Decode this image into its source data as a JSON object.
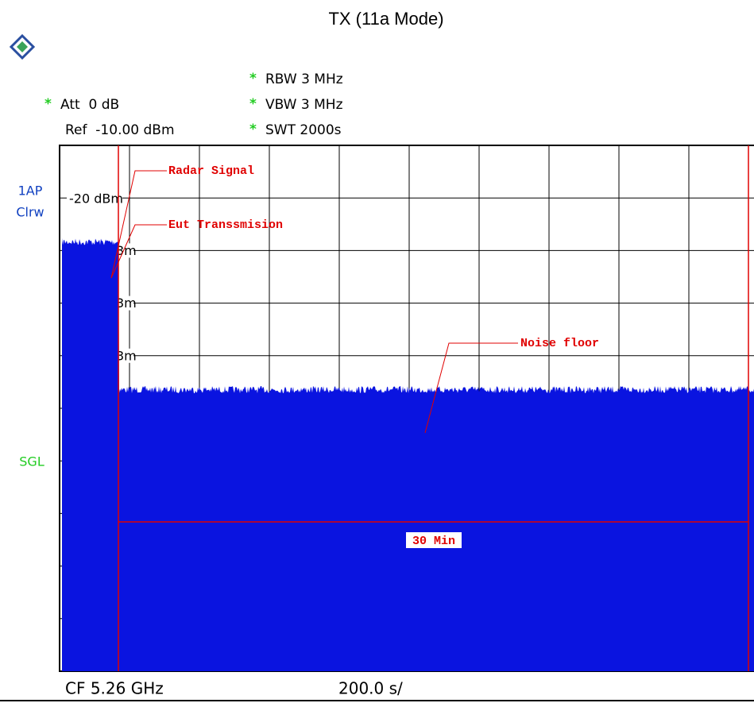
{
  "title": "TX (11a Mode)",
  "settings": {
    "marker": "*",
    "rbw": "RBW 3 MHz",
    "att": "Att  0 dB",
    "vbw": "VBW 3 MHz",
    "ref": "Ref  -10.00 dBm",
    "swt": "SWT 2000s"
  },
  "side": {
    "trace": "1AP",
    "mode": "Clrw",
    "sweep": "SGL"
  },
  "level_labels": [
    "-20 dBm",
    "3m",
    "3m",
    "3m"
  ],
  "annotations": {
    "radar": "Radar Signal",
    "eut": "Eut Transsmision",
    "noise": "Noise floor",
    "duration": "30 Min"
  },
  "footer": {
    "center": "CF 5.26 GHz",
    "span": "200.0 s/"
  }
}
